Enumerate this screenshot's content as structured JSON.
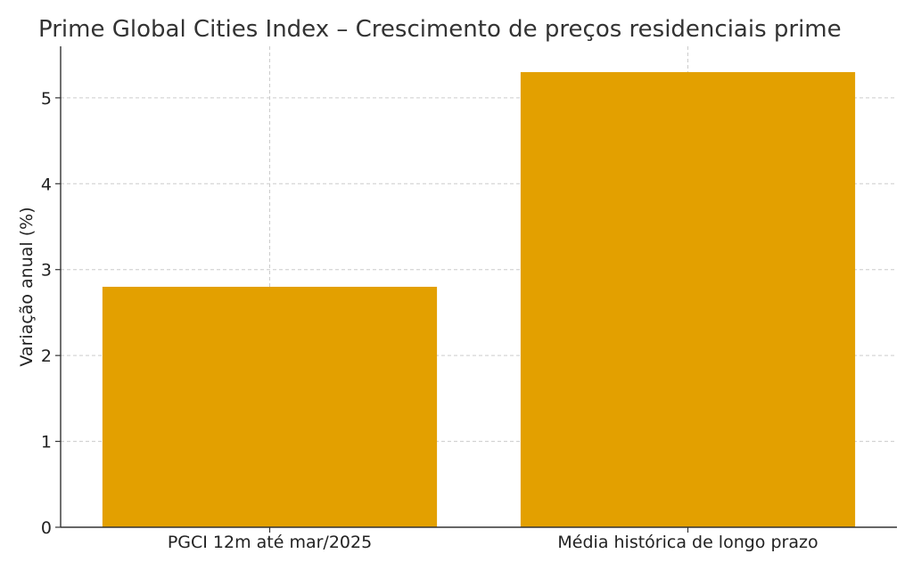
{
  "chart_data": {
    "type": "bar",
    "title": "Prime Global Cities Index – Crescimento de preços residenciais prime",
    "xlabel": "",
    "ylabel": "Variação anual (%)",
    "categories": [
      "PGCI 12m até mar/2025",
      "Média histórica de longo prazo"
    ],
    "values": [
      2.8,
      5.3
    ],
    "ylim": [
      0,
      5.6
    ],
    "yticks": [
      0,
      1,
      2,
      3,
      4,
      5
    ],
    "grid": true,
    "colors": {
      "bar": "#E3A000",
      "axis": "#333333",
      "grid": "#cccccc",
      "title": "#333333"
    }
  }
}
